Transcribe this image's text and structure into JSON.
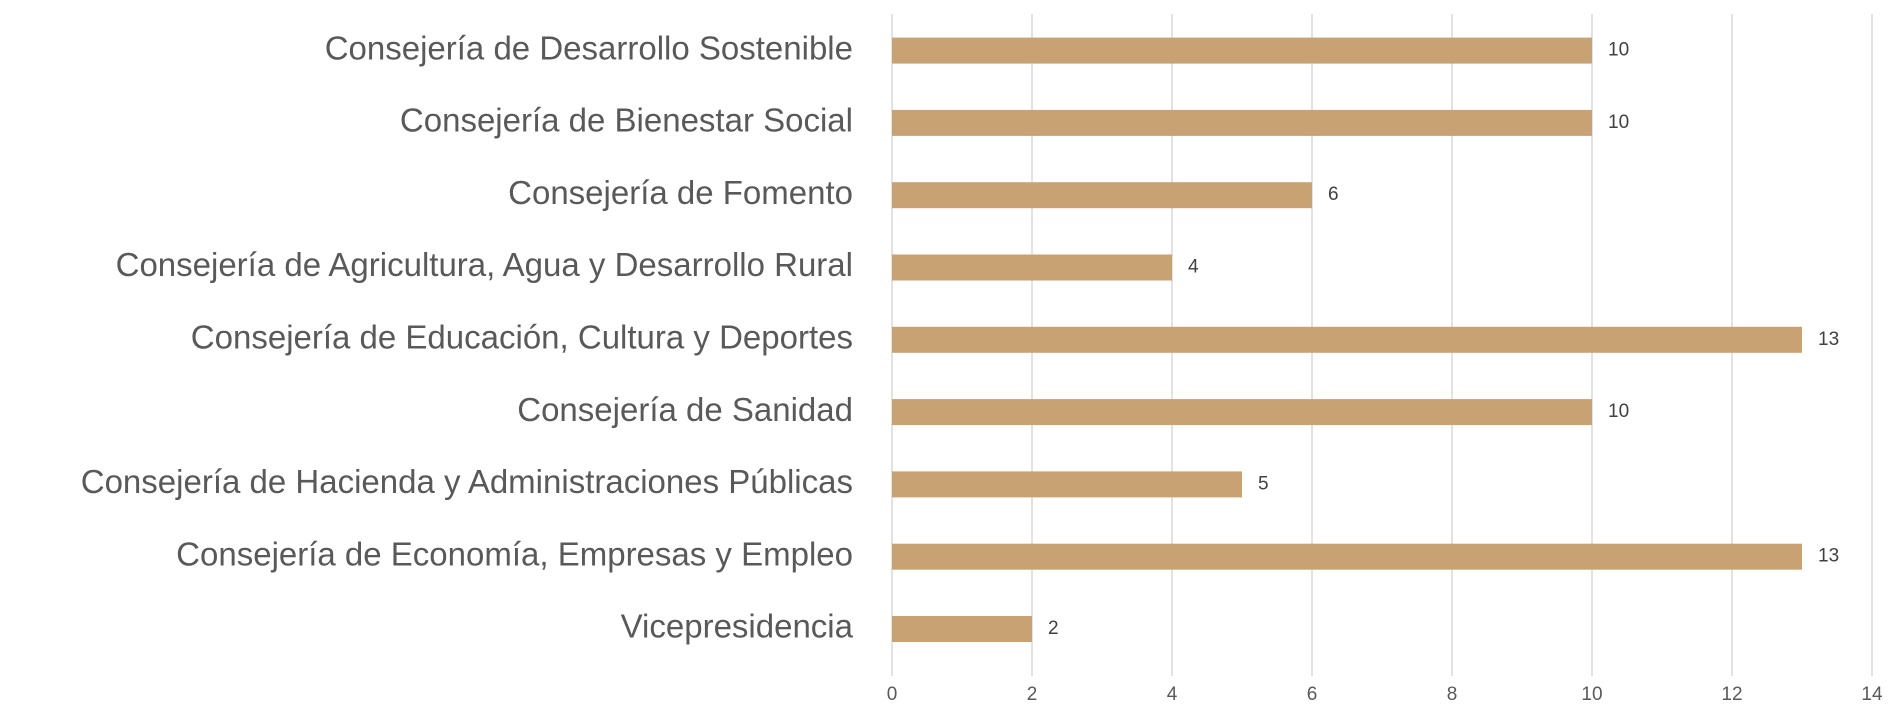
{
  "chart_data": {
    "type": "bar",
    "orientation": "horizontal",
    "categories": [
      "Consejería de Desarrollo Sostenible",
      "Consejería de Bienestar Social",
      "Consejería de Fomento",
      "Consejería de Agricultura, Agua y Desarrollo Rural",
      "Consejería de Educación, Cultura y Deportes",
      "Consejería de Sanidad",
      "Consejería de Hacienda y Administraciones Públicas",
      "Consejería de Economía, Empresas y Empleo",
      "Vicepresidencia"
    ],
    "values": [
      10,
      10,
      6,
      4,
      13,
      10,
      5,
      13,
      2
    ],
    "color": "#c8a272",
    "xlim": [
      0,
      14
    ],
    "xticks": [
      0,
      2,
      4,
      6,
      8,
      10,
      12,
      14
    ],
    "grid": true,
    "data_labels": true
  }
}
